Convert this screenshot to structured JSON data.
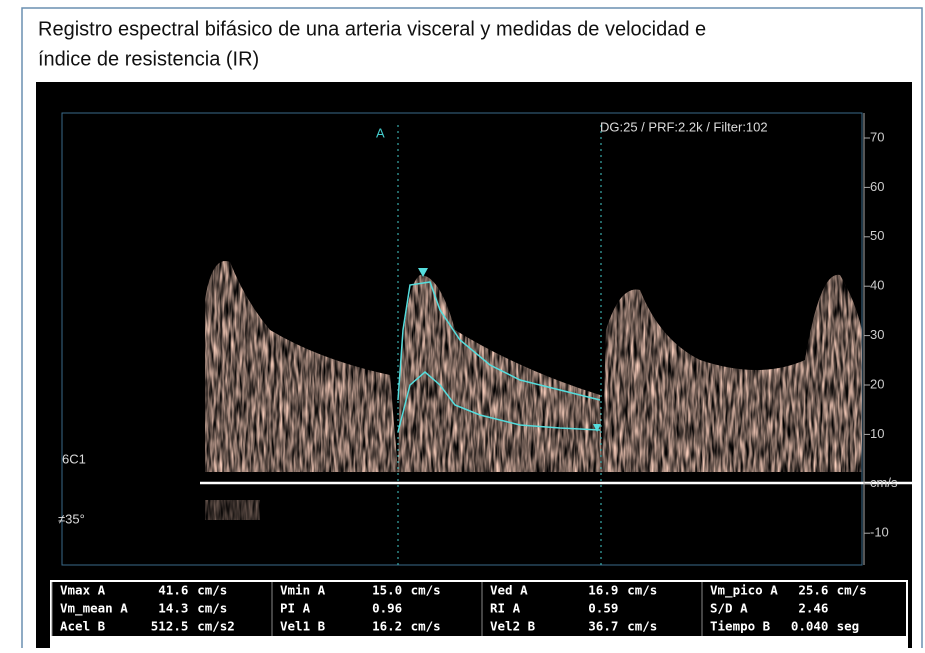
{
  "figure": {
    "caption": [
      "Registro espectral bifásico de una arteria visceral y medidas de velocidad e",
      "índice de resistencia (IR)"
    ],
    "overlay": {
      "settings": "DG:25 /   PRF:2.2k   / Filter:102",
      "cursor": "A",
      "probe": "6C1",
      "angle": "≠35°"
    },
    "scale": {
      "ticks": [
        "70",
        "60",
        "50",
        "40",
        "30",
        "20",
        "10",
        "cm/s",
        "-10"
      ]
    },
    "table": {
      "rows": [
        [
          [
            "Vmax A",
            "41.6",
            "cm/s"
          ],
          [
            "Vmin A",
            "15.0",
            "cm/s"
          ],
          [
            "Ved A",
            "16.9",
            "cm/s"
          ],
          [
            "Vm_pico A",
            "25.6",
            "cm/s"
          ]
        ],
        [
          [
            "Vm_mean A",
            "14.3",
            "cm/s"
          ],
          [
            "PI A",
            "0.96"
          ],
          [
            "RI A",
            "0.59"
          ],
          [
            "S/D A",
            "2.46"
          ]
        ],
        [
          [
            "Acel B",
            "512.5",
            "cm/s2"
          ],
          [
            "Vel1 B",
            "16.2",
            "cm/s"
          ],
          [
            "Vel2 B",
            "36.7",
            "cm/s"
          ],
          [
            "Tiempo B",
            "0.040",
            "seg"
          ]
        ]
      ]
    }
  }
}
